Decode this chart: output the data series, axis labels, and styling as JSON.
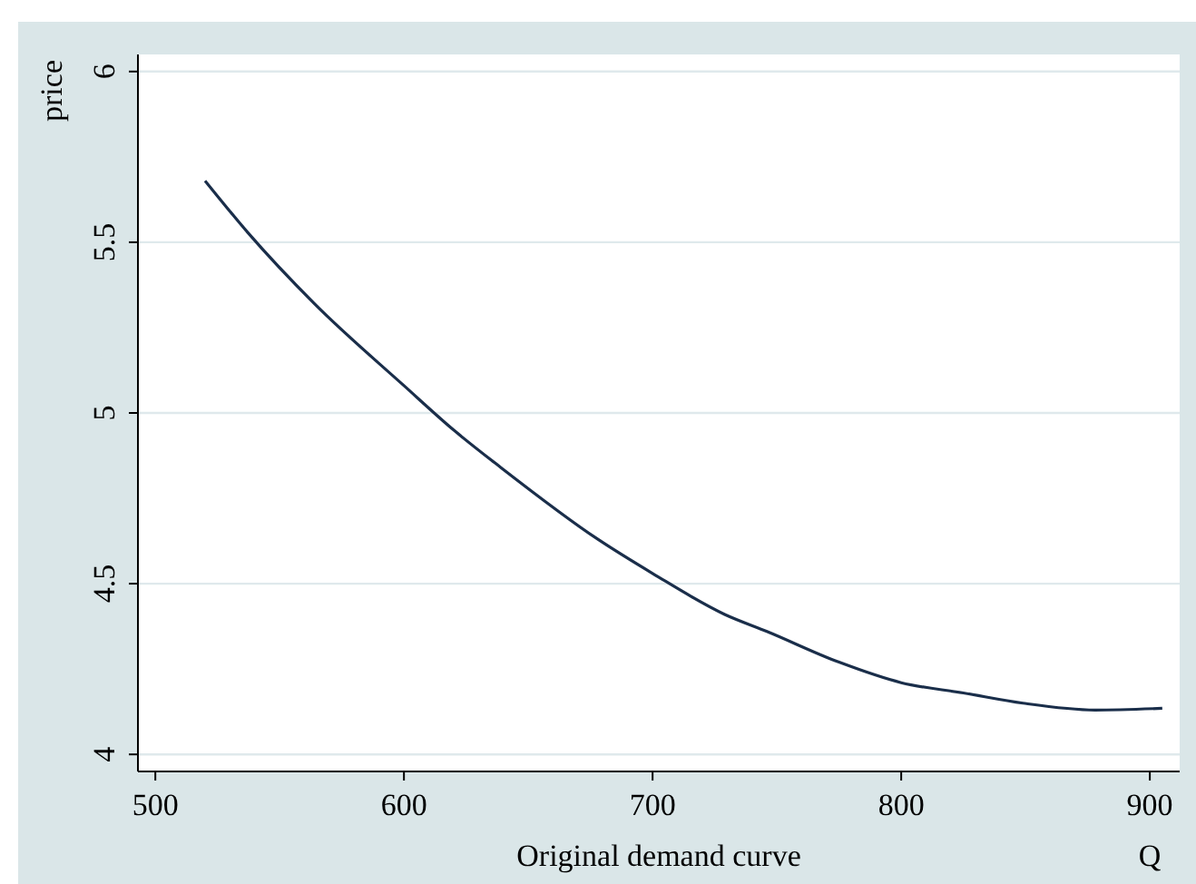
{
  "chart_data": {
    "type": "line",
    "xlabel": "Q",
    "ylabel": "price",
    "annotations": [
      "Original demand curve"
    ],
    "x": [
      520,
      537,
      564,
      600,
      620,
      639,
      678,
      700,
      729,
      746,
      775,
      800,
      825,
      849,
      878,
      905
    ],
    "series": [
      {
        "color": "#1a2e4a",
        "values": [
          5.68,
          5.53,
          5.32,
          5.08,
          4.95,
          4.84,
          4.63,
          4.53,
          4.41,
          4.36,
          4.27,
          4.21,
          4.18,
          4.15,
          4.13,
          4.135
        ]
      }
    ],
    "xlim": [
      493,
      912
    ],
    "xticks": [
      500,
      600,
      700,
      800,
      900
    ],
    "ylim": [
      3.95,
      6.05
    ],
    "yticks": [
      4,
      4.5,
      5,
      5.5,
      6
    ],
    "grid": "y",
    "marker": "none",
    "line_style": "solid"
  }
}
